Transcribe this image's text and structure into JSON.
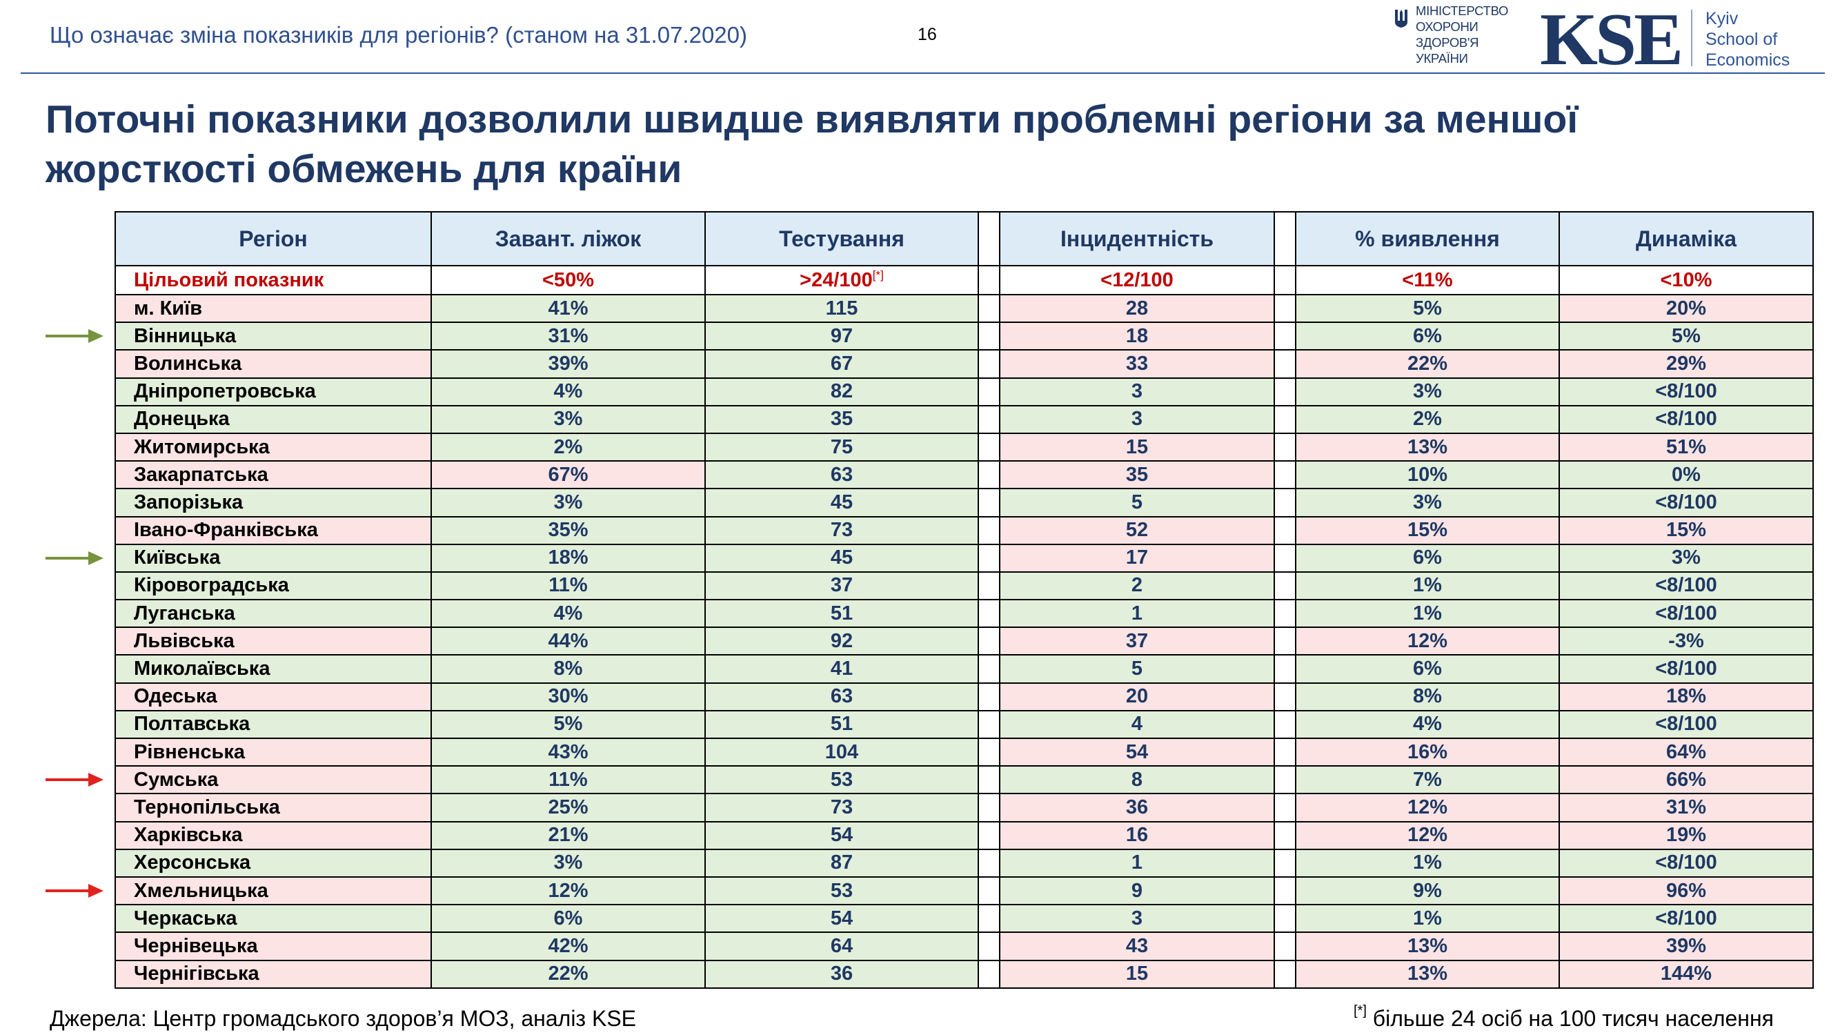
{
  "header": {
    "subtitle": "Що означає зміна показників для регіонів? (станом на 31.07.2020)",
    "page_number": "16",
    "ministry_lines": [
      "МІНІСТЕРСТВО",
      "ОХОРОНИ",
      "ЗДОРОВ'Я",
      "УКРАЇНИ"
    ],
    "kse_logo": "KSE",
    "kse_sub_lines": [
      "Kyiv",
      "School of",
      "Economics"
    ]
  },
  "title": "Поточні показники дозволили швидше виявляти проблемні регіони за меншої жорсткості обмежень для країни",
  "table": {
    "headers": [
      "Регіон",
      "Завант. ліжок",
      "Тестування",
      "Інцидентність",
      "% виявлення",
      "Динаміка"
    ],
    "target": {
      "label": "Цільовий показник",
      "beds": "<50%",
      "testing": ">24/100",
      "testing_note": "[*]",
      "incidence": "<12/100",
      "detection": "<11%",
      "dynamics": "<10%"
    },
    "rows": [
      {
        "region": "м. Київ",
        "beds": "41%",
        "testing": "115",
        "incidence": "28",
        "detection": "5%",
        "dynamics": "20%",
        "c": [
          "r",
          "g",
          "g",
          "r",
          "g",
          "r"
        ]
      },
      {
        "region": "Вінницька",
        "beds": "31%",
        "testing": "97",
        "incidence": "18",
        "detection": "6%",
        "dynamics": "5%",
        "c": [
          "g",
          "g",
          "g",
          "r",
          "g",
          "g"
        ]
      },
      {
        "region": "Волинська",
        "beds": "39%",
        "testing": "67",
        "incidence": "33",
        "detection": "22%",
        "dynamics": "29%",
        "c": [
          "r",
          "g",
          "g",
          "r",
          "r",
          "r"
        ]
      },
      {
        "region": "Дніпропетровська",
        "beds": "4%",
        "testing": "82",
        "incidence": "3",
        "detection": "3%",
        "dynamics": "<8/100",
        "c": [
          "g",
          "g",
          "g",
          "g",
          "g",
          "g"
        ]
      },
      {
        "region": "Донецька",
        "beds": "3%",
        "testing": "35",
        "incidence": "3",
        "detection": "2%",
        "dynamics": "<8/100",
        "c": [
          "g",
          "g",
          "g",
          "g",
          "g",
          "g"
        ]
      },
      {
        "region": "Житомирська",
        "beds": "2%",
        "testing": "75",
        "incidence": "15",
        "detection": "13%",
        "dynamics": "51%",
        "c": [
          "r",
          "g",
          "g",
          "r",
          "r",
          "r"
        ]
      },
      {
        "region": "Закарпатська",
        "beds": "67%",
        "testing": "63",
        "incidence": "35",
        "detection": "10%",
        "dynamics": "0%",
        "c": [
          "r",
          "r",
          "g",
          "r",
          "g",
          "g"
        ]
      },
      {
        "region": "Запорізька",
        "beds": "3%",
        "testing": "45",
        "incidence": "5",
        "detection": "3%",
        "dynamics": "<8/100",
        "c": [
          "g",
          "g",
          "g",
          "g",
          "g",
          "g"
        ]
      },
      {
        "region": "Івано-Франківська",
        "beds": "35%",
        "testing": "73",
        "incidence": "52",
        "detection": "15%",
        "dynamics": "15%",
        "c": [
          "r",
          "g",
          "g",
          "r",
          "r",
          "r"
        ]
      },
      {
        "region": "Київська",
        "beds": "18%",
        "testing": "45",
        "incidence": "17",
        "detection": "6%",
        "dynamics": "3%",
        "c": [
          "g",
          "g",
          "g",
          "r",
          "g",
          "g"
        ]
      },
      {
        "region": "Кіровоградська",
        "beds": "11%",
        "testing": "37",
        "incidence": "2",
        "detection": "1%",
        "dynamics": "<8/100",
        "c": [
          "g",
          "g",
          "g",
          "g",
          "g",
          "g"
        ]
      },
      {
        "region": "Луганська",
        "beds": "4%",
        "testing": "51",
        "incidence": "1",
        "detection": "1%",
        "dynamics": "<8/100",
        "c": [
          "g",
          "g",
          "g",
          "g",
          "g",
          "g"
        ]
      },
      {
        "region": "Львівська",
        "beds": "44%",
        "testing": "92",
        "incidence": "37",
        "detection": "12%",
        "dynamics": "-3%",
        "c": [
          "r",
          "g",
          "g",
          "r",
          "r",
          "g"
        ]
      },
      {
        "region": "Миколаївська",
        "beds": "8%",
        "testing": "41",
        "incidence": "5",
        "detection": "6%",
        "dynamics": "<8/100",
        "c": [
          "g",
          "g",
          "g",
          "g",
          "g",
          "g"
        ]
      },
      {
        "region": "Одеська",
        "beds": "30%",
        "testing": "63",
        "incidence": "20",
        "detection": "8%",
        "dynamics": "18%",
        "c": [
          "r",
          "g",
          "g",
          "r",
          "g",
          "r"
        ]
      },
      {
        "region": "Полтавська",
        "beds": "5%",
        "testing": "51",
        "incidence": "4",
        "detection": "4%",
        "dynamics": "<8/100",
        "c": [
          "g",
          "g",
          "g",
          "g",
          "g",
          "g"
        ]
      },
      {
        "region": "Рівненська",
        "beds": "43%",
        "testing": "104",
        "incidence": "54",
        "detection": "16%",
        "dynamics": "64%",
        "c": [
          "r",
          "g",
          "g",
          "r",
          "r",
          "r"
        ]
      },
      {
        "region": "Сумська",
        "beds": "11%",
        "testing": "53",
        "incidence": "8",
        "detection": "7%",
        "dynamics": "66%",
        "c": [
          "r",
          "g",
          "g",
          "g",
          "g",
          "r"
        ]
      },
      {
        "region": "Тернопільська",
        "beds": "25%",
        "testing": "73",
        "incidence": "36",
        "detection": "12%",
        "dynamics": "31%",
        "c": [
          "r",
          "g",
          "g",
          "r",
          "r",
          "r"
        ]
      },
      {
        "region": "Харківська",
        "beds": "21%",
        "testing": "54",
        "incidence": "16",
        "detection": "12%",
        "dynamics": "19%",
        "c": [
          "r",
          "g",
          "g",
          "r",
          "r",
          "r"
        ]
      },
      {
        "region": "Херсонська",
        "beds": "3%",
        "testing": "87",
        "incidence": "1",
        "detection": "1%",
        "dynamics": "<8/100",
        "c": [
          "g",
          "g",
          "g",
          "g",
          "g",
          "g"
        ]
      },
      {
        "region": "Хмельницька",
        "beds": "12%",
        "testing": "53",
        "incidence": "9",
        "detection": "9%",
        "dynamics": "96%",
        "c": [
          "r",
          "g",
          "g",
          "g",
          "g",
          "r"
        ]
      },
      {
        "region": "Черкаська",
        "beds": "6%",
        "testing": "54",
        "incidence": "3",
        "detection": "1%",
        "dynamics": "<8/100",
        "c": [
          "g",
          "g",
          "g",
          "g",
          "g",
          "g"
        ]
      },
      {
        "region": "Чернівецька",
        "beds": "42%",
        "testing": "64",
        "incidence": "43",
        "detection": "13%",
        "dynamics": "39%",
        "c": [
          "r",
          "g",
          "g",
          "r",
          "r",
          "r"
        ]
      },
      {
        "region": "Чернігівська",
        "beds": "22%",
        "testing": "36",
        "incidence": "15",
        "detection": "13%",
        "dynamics": "144%",
        "c": [
          "r",
          "g",
          "g",
          "r",
          "r",
          "r"
        ]
      }
    ]
  },
  "arrows": [
    {
      "region": "Вінницька",
      "color": "#77933c"
    },
    {
      "region": "Київська",
      "color": "#77933c"
    },
    {
      "region": "Сумська",
      "color": "#e0231f"
    },
    {
      "region": "Хмельницька",
      "color": "#e0231f"
    }
  ],
  "footer": {
    "source": "Джерела: Центр громадського здоров’я МОЗ, аналіз KSE",
    "note_mark": "[*]",
    "note": " більше 24 осіб на 100 тисяч населення"
  }
}
